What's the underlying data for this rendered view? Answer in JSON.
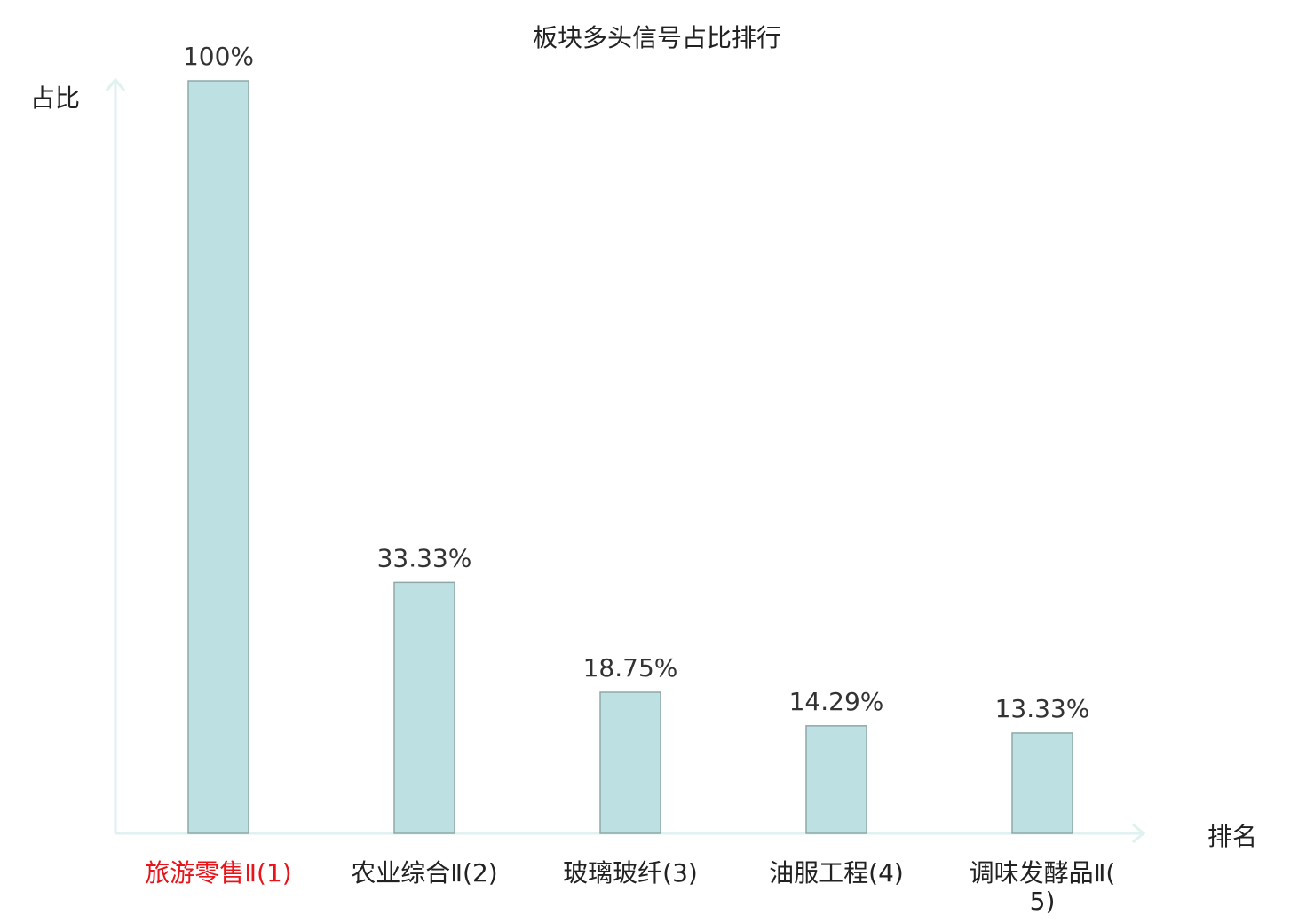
{
  "chart_data": {
    "type": "bar",
    "title": "板块多头信号占比排行",
    "y_label": "占比",
    "x_label": "排名",
    "categories": [
      "旅游零售Ⅱ(1)",
      "农业综合Ⅱ(2)",
      "玻璃玻纤(3)",
      "油服工程(4)",
      "调味发酵品Ⅱ(5)"
    ],
    "category_colors": [
      "#e8141a",
      "#222222",
      "#222222",
      "#222222",
      "#222222"
    ],
    "values": [
      100,
      33.33,
      18.75,
      14.29,
      13.33
    ],
    "value_labels": [
      "100%",
      "33.33%",
      "18.75%",
      "14.29%",
      "13.33%"
    ],
    "color": "#bde0e2",
    "edge_color": "#8fa8a8",
    "axis_color": "#dff2ef",
    "ylim": [
      0,
      100
    ]
  }
}
